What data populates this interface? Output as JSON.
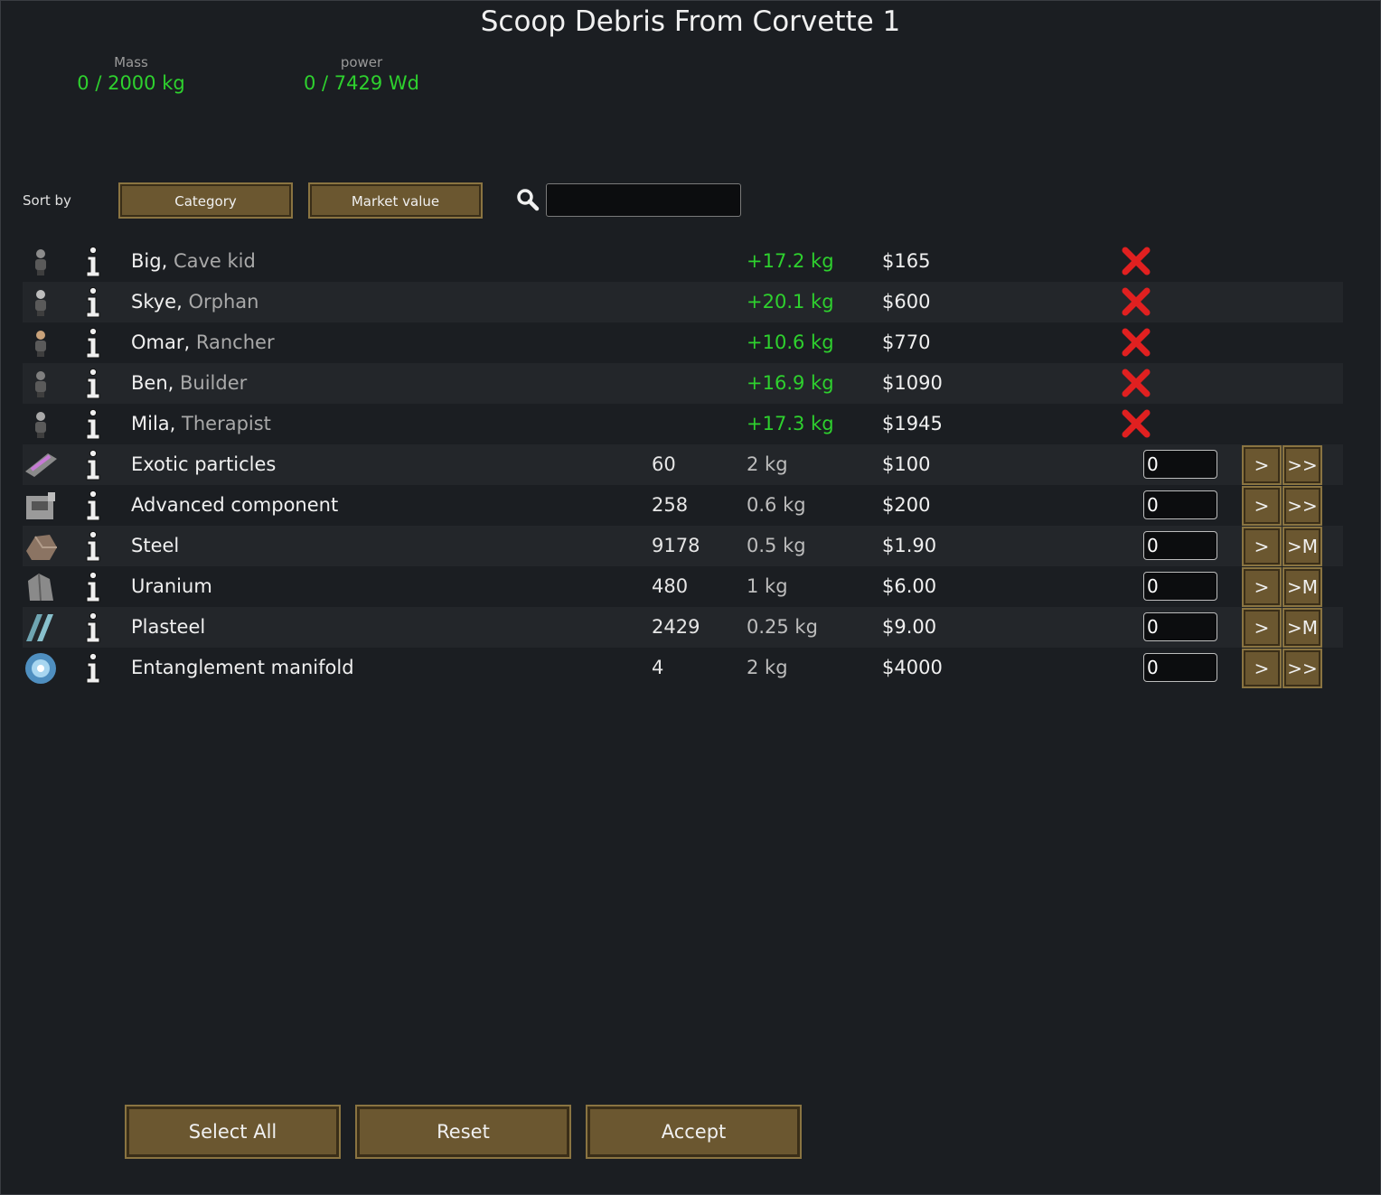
{
  "title": "Scoop Debris From Corvette 1",
  "stats": {
    "mass": {
      "label": "Mass",
      "value": "0 / 2000 kg"
    },
    "power": {
      "label": "power",
      "value": "0 / 7429 Wd"
    }
  },
  "sort": {
    "label": "Sort by",
    "category_label": "Category",
    "market_value_label": "Market value"
  },
  "search": {
    "value": ""
  },
  "pawns": [
    {
      "name": "Big",
      "sep": ", ",
      "title": "Cave kid",
      "mass": "+17.2 kg",
      "price": "$165"
    },
    {
      "name": "Skye",
      "sep": ", ",
      "title": "Orphan",
      "mass": "+20.1 kg",
      "price": "$600"
    },
    {
      "name": "Omar",
      "sep": ", ",
      "title": "Rancher",
      "mass": "+10.6 kg",
      "price": "$770"
    },
    {
      "name": "Ben",
      "sep": ", ",
      "title": "Builder",
      "mass": "+16.9 kg",
      "price": "$1090"
    },
    {
      "name": "Mila",
      "sep": ", ",
      "title": "Therapist",
      "mass": "+17.3 kg",
      "price": "$1945"
    }
  ],
  "items": [
    {
      "name": "Exotic particles",
      "count": "60",
      "mass": "2 kg",
      "price": "$100",
      "qty": "0",
      "btn1": ">",
      "btn2": ">>",
      "icon": "exotic-particles-icon"
    },
    {
      "name": "Advanced component",
      "count": "258",
      "mass": "0.6 kg",
      "price": "$200",
      "qty": "0",
      "btn1": ">",
      "btn2": ">>",
      "icon": "advanced-component-icon"
    },
    {
      "name": "Steel",
      "count": "9178",
      "mass": "0.5 kg",
      "price": "$1.90",
      "qty": "0",
      "btn1": ">",
      "btn2": ">M",
      "icon": "steel-icon"
    },
    {
      "name": "Uranium",
      "count": "480",
      "mass": "1 kg",
      "price": "$6.00",
      "qty": "0",
      "btn1": ">",
      "btn2": ">M",
      "icon": "uranium-icon"
    },
    {
      "name": "Plasteel",
      "count": "2429",
      "mass": "0.25 kg",
      "price": "$9.00",
      "qty": "0",
      "btn1": ">",
      "btn2": ">M",
      "icon": "plasteel-icon"
    },
    {
      "name": "Entanglement manifold",
      "count": "4",
      "mass": "2 kg",
      "price": "$4000",
      "qty": "0",
      "btn1": ">",
      "btn2": ">>",
      "icon": "entanglement-manifold-icon"
    }
  ],
  "footer": {
    "select_all_label": "Select All",
    "reset_label": "Reset",
    "accept_label": "Accept"
  },
  "colors": {
    "background": "#1b1e22",
    "row_alt": "#23262a",
    "positive": "#2ed12e",
    "button": "#6b5730",
    "remove": "#e02020"
  }
}
